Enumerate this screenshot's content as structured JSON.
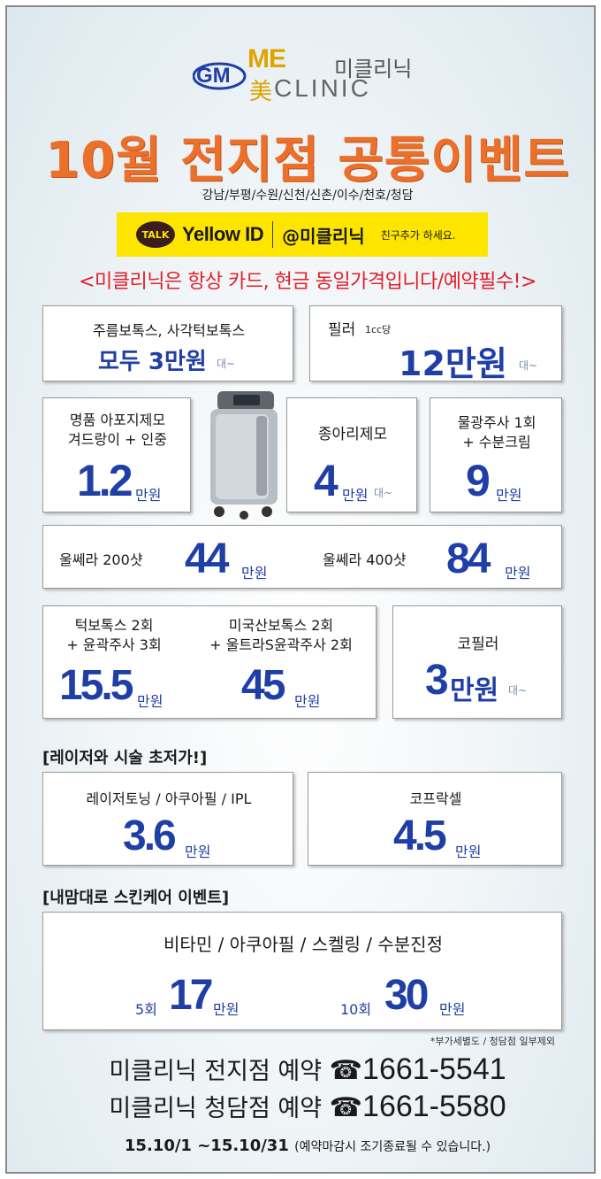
{
  "header": {
    "logo_gm": "GM",
    "logo_me": "ME",
    "logo_mi": "美",
    "logo_clinic": "CLINIC",
    "logo_korean": "미클리닉",
    "title": "10월 전지점 공통이벤트",
    "branches": "강남/부평/수원/신천/신촌/이수/천호/청담"
  },
  "kakao": {
    "talk": "TALK",
    "yellow_id": "Yellow ID",
    "handle": "@미클리닉",
    "note": "친구추가 하세요."
  },
  "notice": "<미클리닉은 항상 카드, 현금 동일가격입니다/예약필수!>",
  "cards": {
    "botox": {
      "line": "주름보톡스, 사각턱보톡스",
      "price": "모두 3만원",
      "suffix": "대~"
    },
    "filler": {
      "label": "필러",
      "sub": "1cc당",
      "price": "12만원",
      "suffix": "대~"
    },
    "apoji": {
      "line1": "명품 아포지제모",
      "line2": "겨드랑이 + 인중",
      "price": "1.2",
      "unit": "만원"
    },
    "jongari": {
      "line": "종아리제모",
      "price": "4",
      "unit": "만원",
      "suffix": "대~"
    },
    "mulgwang": {
      "line1": "물광주사 1회",
      "line2": "+ 수분크림",
      "price": "9",
      "unit": "만원"
    },
    "ulthera": {
      "a_label": "울쎄라 200샷",
      "a_price": "44",
      "a_unit": "만원",
      "b_label": "울쎄라 400샷",
      "b_price": "84",
      "b_unit": "만원"
    },
    "combo": {
      "a_line1": "턱보톡스 2회",
      "a_line2": "+ 윤곽주사 3회",
      "a_price": "15.5",
      "a_unit": "만원",
      "b_line1": "미국산보톡스 2회",
      "b_line2": "+ 울트라S윤곽주사 2회",
      "b_price": "45",
      "b_unit": "만원"
    },
    "nose_filler": {
      "line": "코필러",
      "price": "3",
      "unit": "만원",
      "suffix": "대~"
    }
  },
  "laser_section": {
    "label": "[레이저와 시술 초저가!]",
    "toning": {
      "line": "레이저토닝 / 아쿠아필 / IPL",
      "price": "3.6",
      "unit": "만원"
    },
    "coprax": {
      "line": "코프락셀",
      "price": "4.5",
      "unit": "만원"
    }
  },
  "skincare_section": {
    "label": "[내맘대로 스킨케어 이벤트]",
    "line": "비타민 / 아쿠아필 / 스켈링 / 수분진정",
    "a_count": "5회",
    "a_price": "17",
    "a_unit": "만원",
    "b_count": "10회",
    "b_price": "30",
    "b_unit": "만원"
  },
  "footnote": "*부가세별도 / 청담점 일부제외",
  "contacts": [
    {
      "label": "미클리닉 전지점 예약",
      "phone_icon": "☎",
      "phone": "1661-5541"
    },
    {
      "label": "미클리닉 청담점 예약",
      "phone_icon": "☎",
      "phone": "1661-5580"
    }
  ],
  "period": {
    "dates": "15.10/1 ~15.10/31",
    "note": "(예약마감시 조기종료될 수 있습니다.)"
  },
  "colors": {
    "title": "#ec6f2a",
    "notice": "#e2202a",
    "price": "#1f3fa6",
    "kakao": "#fde500"
  }
}
